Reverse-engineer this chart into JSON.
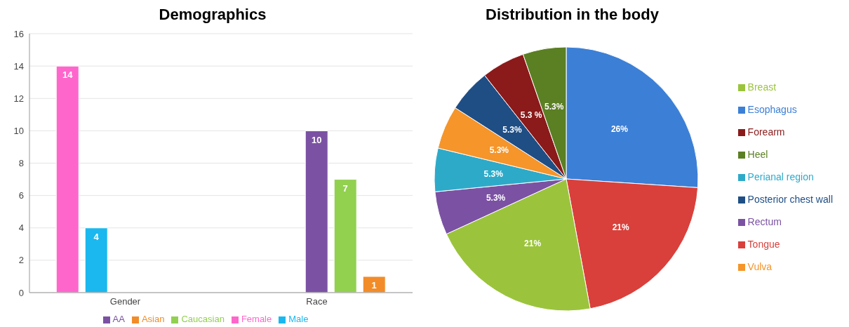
{
  "chart_data": [
    {
      "type": "bar",
      "title": "Demographics",
      "categories": [
        "Gender",
        "Race"
      ],
      "series": [
        {
          "name": "Female",
          "color": "#ff66cc",
          "values": [
            14,
            null
          ]
        },
        {
          "name": "Male",
          "color": "#1ab8ee",
          "values": [
            4,
            null
          ]
        },
        {
          "name": "AA",
          "color": "#7b52a3",
          "values": [
            null,
            10
          ]
        },
        {
          "name": "Caucasian",
          "color": "#92d050",
          "values": [
            null,
            7
          ]
        },
        {
          "name": "Asian",
          "color": "#f28c28",
          "values": [
            null,
            1
          ]
        }
      ],
      "ylim": [
        0,
        16
      ],
      "yticks": [
        0,
        2,
        4,
        6,
        8,
        10,
        12,
        14,
        16
      ],
      "grid": "y",
      "legend": "bottom",
      "data_labels": true
    },
    {
      "type": "pie",
      "title": "Distribution in the body",
      "categories": [
        "Esophagus",
        "Tongue",
        "Breast",
        "Rectum",
        "Perianal region",
        "Vulva",
        "Posterior chest wall",
        "Forearm",
        "Heel"
      ],
      "values": [
        26,
        21,
        21,
        5.3,
        5.3,
        5.3,
        5.3,
        5.3,
        5.3
      ],
      "colors": [
        "#3c7fd6",
        "#d9403b",
        "#9bc43c",
        "#7b52a3",
        "#2eaac9",
        "#f5952a",
        "#1f4e85",
        "#8b1a1a",
        "#5b7f23"
      ],
      "value_labels": [
        "26%",
        "21%",
        "21%",
        "5.3%",
        "5.3%",
        "5.3%",
        "5.3%",
        "5.3 %",
        "5.3%"
      ],
      "legend": "right"
    }
  ]
}
